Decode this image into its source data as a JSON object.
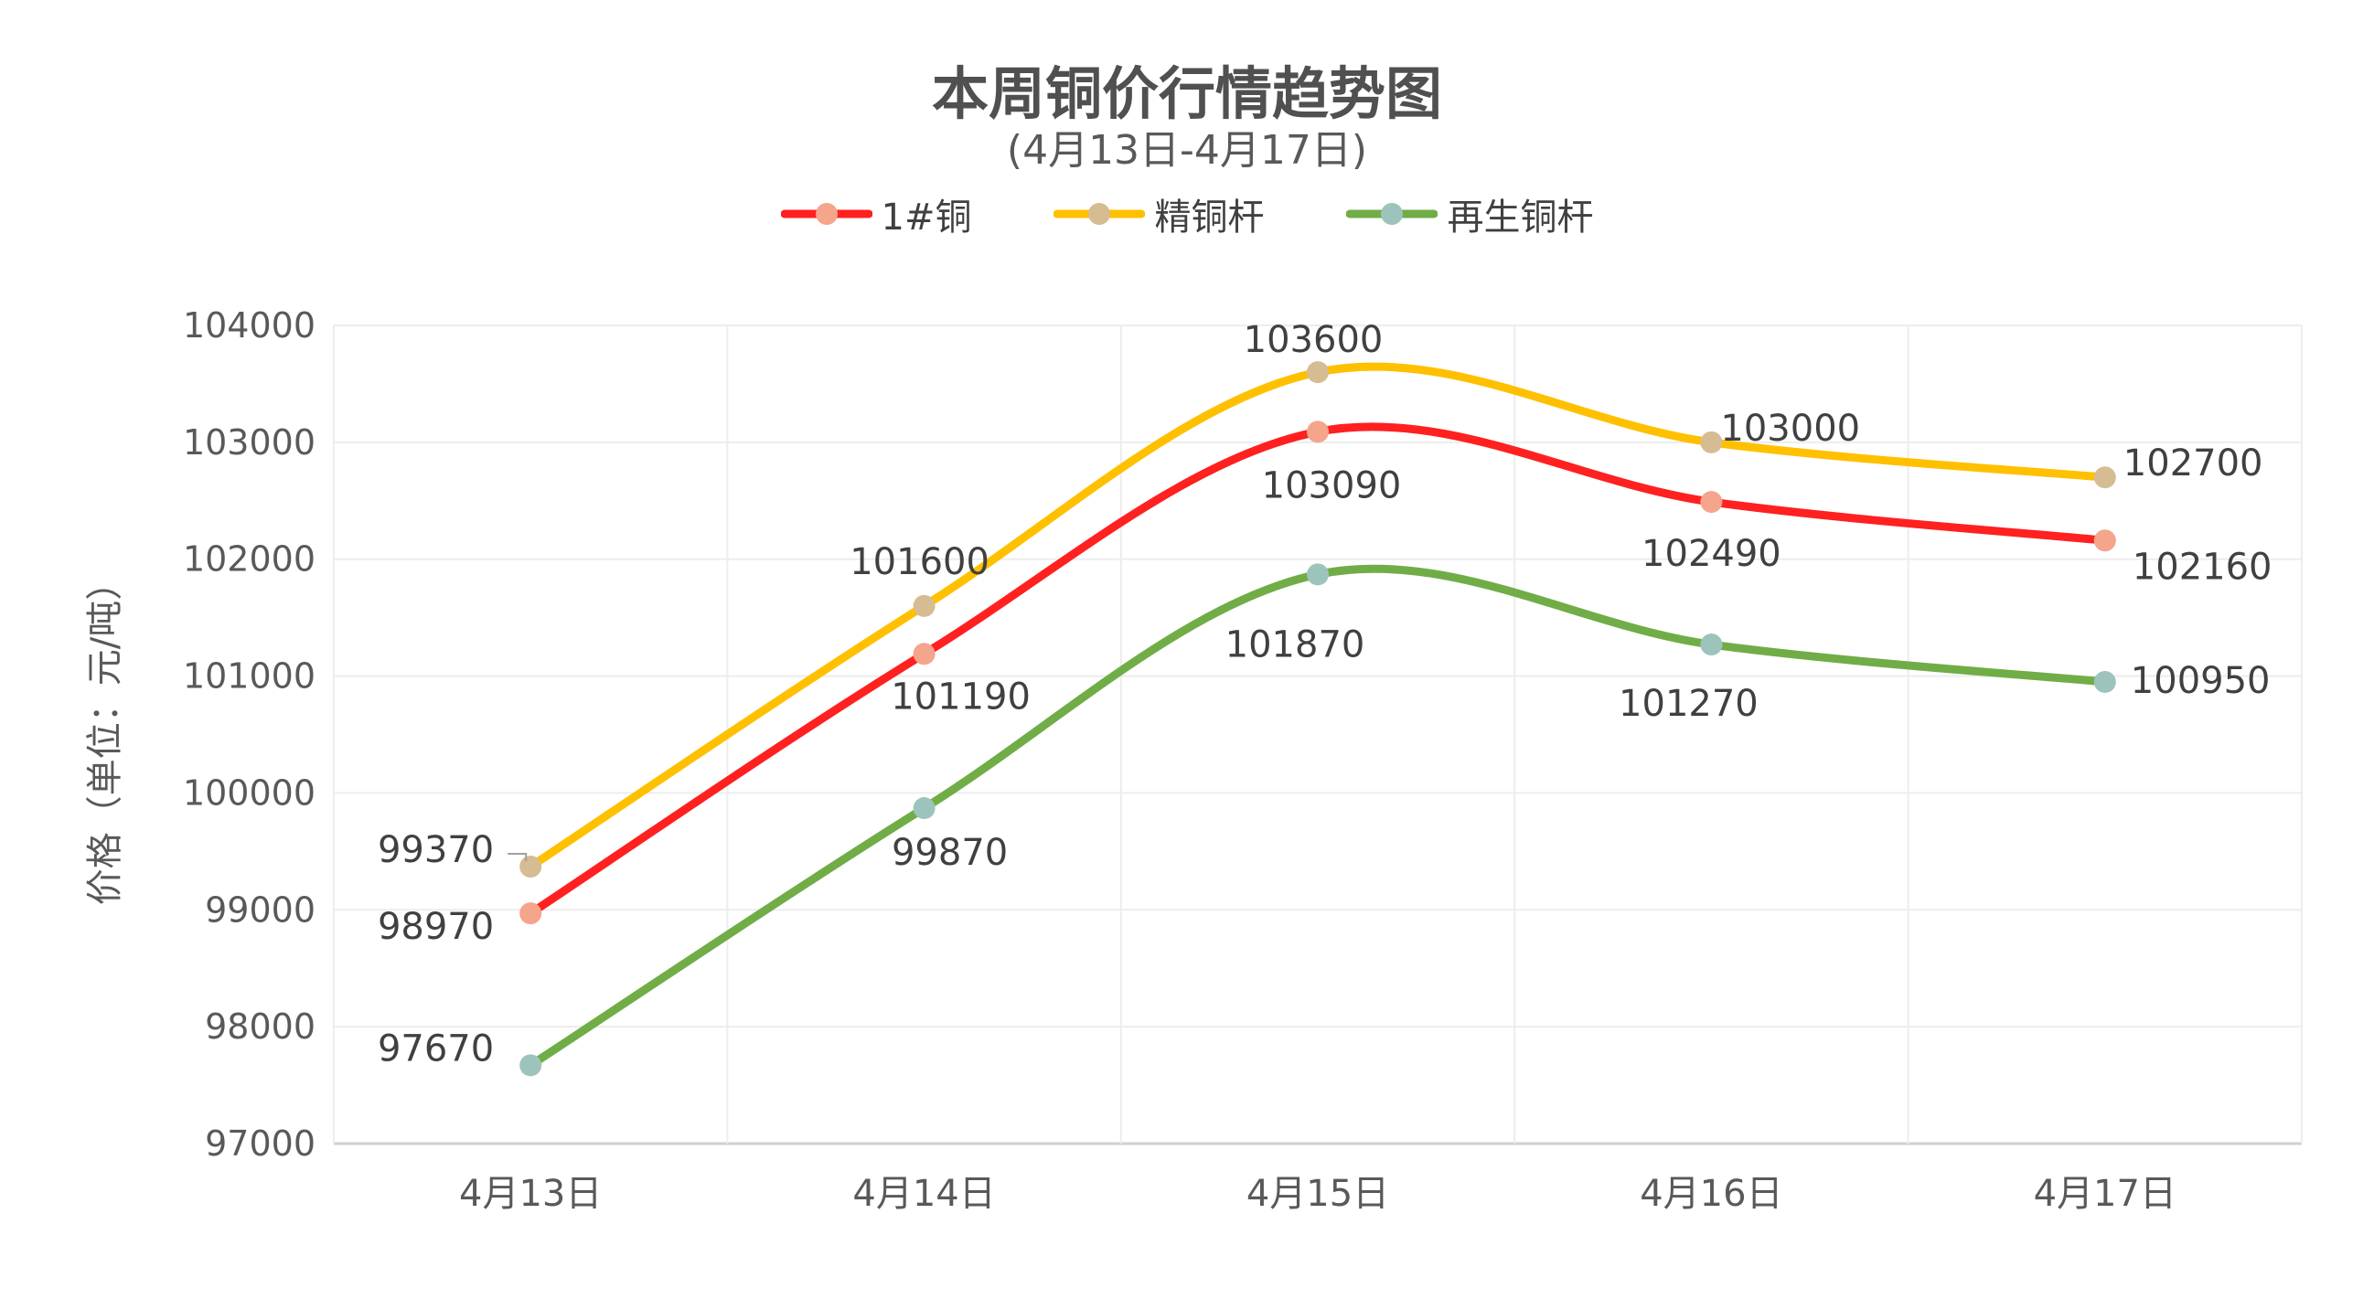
{
  "chart_data": {
    "type": "line",
    "title": "本周铜价行情趋势图",
    "subtitle": "(4月13日-4月17日)",
    "ylabel": "价格（单位：元/吨）",
    "xlabel": "",
    "categories": [
      "4月13日",
      "4月14日",
      "4月15日",
      "4月16日",
      "4月17日"
    ],
    "ylim": [
      97000,
      104000
    ],
    "yticks": [
      "97000",
      "98000",
      "99000",
      "100000",
      "101000",
      "102000",
      "103000",
      "104000"
    ],
    "grid": true,
    "smooth": true,
    "legend_position": "top",
    "series": [
      {
        "name": "1#铜",
        "color": "#FF2020",
        "marker": "#F4A58C",
        "values": [
          98970,
          101190,
          103090,
          102490,
          102160
        ]
      },
      {
        "name": "精铜杆",
        "color": "#FFC000",
        "marker": "#D6BC93",
        "values": [
          99370,
          101600,
          103600,
          103000,
          102700
        ]
      },
      {
        "name": "再生铜杆",
        "color": "#70AD47",
        "marker": "#9DC3BD",
        "values": [
          97670,
          99870,
          101870,
          101270,
          100950
        ]
      }
    ]
  }
}
